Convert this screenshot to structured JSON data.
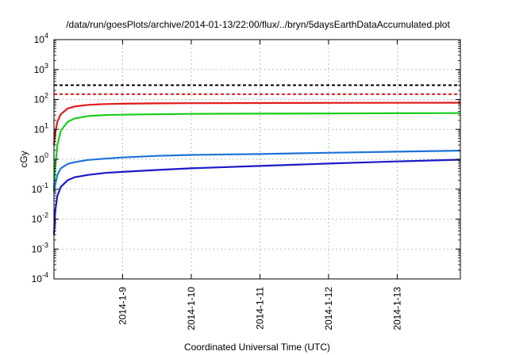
{
  "chart_data": {
    "type": "line",
    "title": "/data/run/goesPlots/archive/2014-01-13/22:00/flux/../bryn/5daysEarthDataAccumulated.plot",
    "xlabel": "Coordinated Universal Time (UTC)",
    "ylabel": "cGy",
    "yscale": "log",
    "ylim": [
      0.0001,
      10000
    ],
    "xlim": [
      "2014-01-08",
      "2014-01-13 22:00"
    ],
    "grid": true,
    "legend": "none",
    "x_ticks": [
      {
        "label": "2014-1-9",
        "day": 1
      },
      {
        "label": "2014-1-10",
        "day": 2
      },
      {
        "label": "2014-1-11",
        "day": 3
      },
      {
        "label": "2014-1-12",
        "day": 4
      },
      {
        "label": "2014-1-13",
        "day": 5
      }
    ],
    "y_ticks": [
      {
        "base": "10",
        "exp": "-4",
        "value": 0.0001
      },
      {
        "base": "10",
        "exp": "-3",
        "value": 0.001
      },
      {
        "base": "10",
        "exp": "-2",
        "value": 0.01
      },
      {
        "base": "10",
        "exp": "-1",
        "value": 0.1
      },
      {
        "base": "10",
        "exp": "0",
        "value": 1
      },
      {
        "base": "10",
        "exp": "1",
        "value": 10
      },
      {
        "base": "10",
        "exp": "2",
        "value": 100
      },
      {
        "base": "10",
        "exp": "3",
        "value": 1000
      },
      {
        "base": "10",
        "exp": "4",
        "value": 10000
      }
    ],
    "series": [
      {
        "color": "#e01a1a",
        "x": [
          0,
          0.02,
          0.05,
          0.1,
          0.2,
          0.3,
          0.5,
          0.75,
          1,
          1.5,
          2,
          3,
          4,
          5,
          5.92
        ],
        "y": [
          3,
          8,
          18,
          32,
          50,
          58,
          66,
          70,
          72,
          74,
          75,
          76,
          77,
          77.5,
          78
        ]
      },
      {
        "color": "#1acc1a",
        "x": [
          0,
          0.02,
          0.05,
          0.1,
          0.2,
          0.3,
          0.5,
          0.75,
          1,
          1.5,
          2,
          3,
          4,
          5,
          5.92
        ],
        "y": [
          0.1,
          0.6,
          3,
          9,
          18,
          23,
          28,
          30,
          31,
          32,
          33,
          33.5,
          34,
          34.5,
          35
        ]
      },
      {
        "color": "#1e73d8",
        "x": [
          0,
          0.02,
          0.05,
          0.1,
          0.2,
          0.3,
          0.5,
          0.75,
          1,
          1.5,
          2,
          3,
          4,
          5,
          5.92
        ],
        "y": [
          0.08,
          0.15,
          0.3,
          0.5,
          0.7,
          0.8,
          0.95,
          1.05,
          1.15,
          1.3,
          1.4,
          1.5,
          1.65,
          1.8,
          1.95
        ]
      },
      {
        "color": "#1a1ac8",
        "x": [
          0,
          0.02,
          0.05,
          0.1,
          0.2,
          0.3,
          0.5,
          0.75,
          1,
          1.5,
          2,
          3,
          4,
          5,
          5.92
        ],
        "y": [
          0.003,
          0.02,
          0.06,
          0.12,
          0.2,
          0.25,
          0.3,
          0.35,
          0.38,
          0.44,
          0.5,
          0.6,
          0.72,
          0.85,
          0.97
        ]
      }
    ],
    "threshold_lines": [
      {
        "color": "#000000",
        "style": "dashed",
        "value": 300
      },
      {
        "color": "#e01a1a",
        "style": "dashed",
        "value": 150
      }
    ]
  }
}
